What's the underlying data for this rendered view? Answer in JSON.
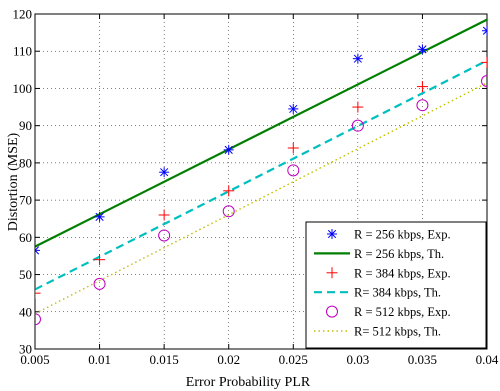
{
  "chart_data": {
    "type": "scatter",
    "title": "",
    "xlabel": "Error Probability PLR",
    "ylabel": "Distortion (MSE)",
    "xlim": [
      0.005,
      0.04
    ],
    "ylim": [
      30,
      120
    ],
    "xticks": [
      0.005,
      0.01,
      0.015,
      0.02,
      0.025,
      0.03,
      0.035,
      0.04
    ],
    "xtick_labels": [
      "0.005",
      "0.01",
      "0.015",
      "0.02",
      "0.025",
      "0.03",
      "0.035",
      "0.04"
    ],
    "yticks": [
      30,
      40,
      50,
      60,
      70,
      80,
      90,
      100,
      110,
      120
    ],
    "ytick_labels": [
      "30",
      "40",
      "50",
      "60",
      "70",
      "80",
      "90",
      "100",
      "110",
      "120"
    ],
    "grid": true,
    "legend_position": "bottom-right",
    "series": [
      {
        "name": "R = 256 kbps, Exp.",
        "kind": "markers",
        "marker": "star",
        "color": "#0000ff",
        "x": [
          0.005,
          0.01,
          0.015,
          0.02,
          0.025,
          0.03,
          0.035,
          0.04
        ],
        "y": [
          56.5,
          65.5,
          77.5,
          83.5,
          94.5,
          108,
          110.5,
          115.5
        ]
      },
      {
        "name": "R = 256 kbps, Th.",
        "kind": "line",
        "line_style": "solid",
        "color": "#007f00",
        "x": [
          0.005,
          0.04
        ],
        "y": [
          57.5,
          118.5
        ]
      },
      {
        "name": "R = 384 kbps, Exp.",
        "kind": "markers",
        "marker": "plus",
        "color": "#ff0000",
        "x": [
          0.005,
          0.01,
          0.015,
          0.02,
          0.025,
          0.03,
          0.035,
          0.04
        ],
        "y": [
          45,
          54,
          66,
          72.5,
          84,
          95,
          100.5,
          107
        ]
      },
      {
        "name": "R= 384 kbps, Th.",
        "kind": "line",
        "line_style": "dashed",
        "color": "#00bfbf",
        "x": [
          0.005,
          0.04
        ],
        "y": [
          46,
          107.5
        ]
      },
      {
        "name": "R = 512 kbps, Exp.",
        "kind": "markers",
        "marker": "circle",
        "color": "#bf00bf",
        "x": [
          0.005,
          0.01,
          0.015,
          0.02,
          0.025,
          0.03,
          0.035,
          0.04
        ],
        "y": [
          38,
          47.5,
          60.5,
          67,
          78,
          90,
          95.5,
          102
        ]
      },
      {
        "name": "R= 512 kbps, Th.",
        "kind": "line",
        "line_style": "dotted",
        "color": "#bfbf00",
        "x": [
          0.005,
          0.04
        ],
        "y": [
          39.5,
          101.5
        ]
      }
    ]
  }
}
